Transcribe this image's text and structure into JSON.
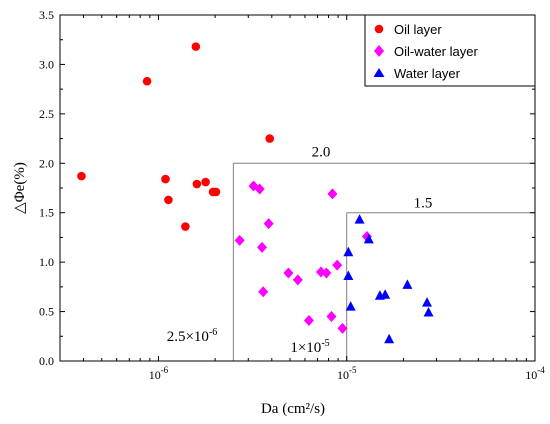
{
  "chart_data": {
    "type": "scatter",
    "x_scale": "log",
    "xlim": [
      3e-07,
      0.0001
    ],
    "ylim": [
      0,
      3.5
    ],
    "xlabel": "Da (cm²/s)",
    "ylabel": "△Φe(%)",
    "y_ticks": [
      "0.0",
      "0.5",
      "1.0",
      "1.5",
      "2.0",
      "2.5",
      "3.0",
      "3.5"
    ],
    "x_ticks": [
      {
        "value": 1e-06,
        "base": "10",
        "exp": "-6"
      },
      {
        "value": 1e-05,
        "base": "10",
        "exp": "-5"
      },
      {
        "value": 0.0001,
        "base": "10",
        "exp": "-4"
      }
    ],
    "grid": false,
    "legend_position": "top-right",
    "colors": {
      "oil": "#ff0000",
      "oilwater": "#ff00ff",
      "water": "#0000ff",
      "boundary": "#808080"
    },
    "series": [
      {
        "name": "Oil layer",
        "marker": "circle",
        "points": [
          [
            3.9e-07,
            1.87
          ],
          [
            8.7e-07,
            2.83
          ],
          [
            1.09e-06,
            1.84
          ],
          [
            1.13e-06,
            1.63
          ],
          [
            1.39e-06,
            1.36
          ],
          [
            1.58e-06,
            3.18
          ],
          [
            1.6e-06,
            1.79
          ],
          [
            1.78e-06,
            1.81
          ],
          [
            1.95e-06,
            1.71
          ],
          [
            2.02e-06,
            1.71
          ],
          [
            3.9e-06,
            2.25
          ]
        ]
      },
      {
        "name": "Oil-water layer",
        "marker": "diamond",
        "points": [
          [
            2.7e-06,
            1.22
          ],
          [
            3.2e-06,
            1.77
          ],
          [
            3.45e-06,
            1.74
          ],
          [
            3.55e-06,
            1.15
          ],
          [
            3.6e-06,
            0.7
          ],
          [
            3.85e-06,
            1.39
          ],
          [
            4.9e-06,
            0.89
          ],
          [
            5.5e-06,
            0.82
          ],
          [
            6.3e-06,
            0.41
          ],
          [
            7.3e-06,
            0.9
          ],
          [
            7.8e-06,
            0.89
          ],
          [
            8.3e-06,
            0.45
          ],
          [
            8.4e-06,
            1.69
          ],
          [
            8.9e-06,
            0.97
          ],
          [
            9.5e-06,
            0.33
          ],
          [
            1.28e-05,
            1.26
          ]
        ]
      },
      {
        "name": "Water layer",
        "marker": "triangle",
        "points": [
          [
            1.02e-05,
            1.1
          ],
          [
            1.02e-05,
            0.86
          ],
          [
            1.05e-05,
            0.55
          ],
          [
            1.17e-05,
            1.43
          ],
          [
            1.31e-05,
            1.23
          ],
          [
            1.5e-05,
            0.66
          ],
          [
            1.6e-05,
            0.67
          ],
          [
            1.68e-05,
            0.22
          ],
          [
            2.1e-05,
            0.77
          ],
          [
            2.67e-05,
            0.59
          ],
          [
            2.72e-05,
            0.49
          ]
        ]
      }
    ],
    "boundaries": [
      {
        "x": 2.5e-06,
        "y": 2.0,
        "y_label": "2.0",
        "x_label": {
          "coef": "2.5×10",
          "exp": "-6"
        }
      },
      {
        "x": 1e-05,
        "y": 1.5,
        "y_label": "1.5",
        "x_label": {
          "coef": "1×10",
          "exp": "-5"
        }
      }
    ]
  }
}
